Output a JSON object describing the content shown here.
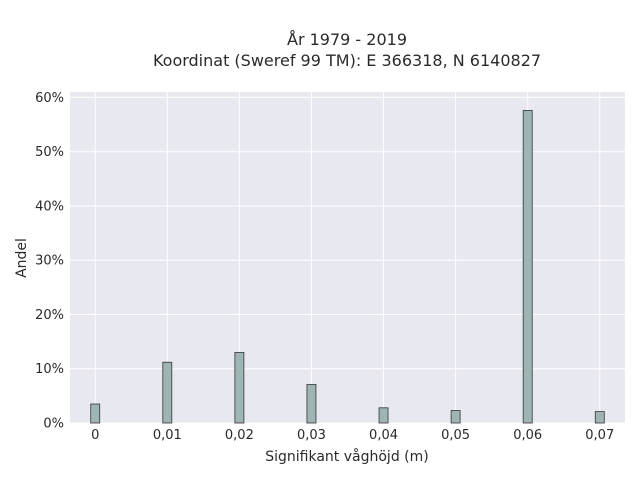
{
  "chart_data": {
    "type": "bar",
    "title_lines": [
      "År 1979 - 2019",
      "Koordinat (Sweref 99 TM): E 366318, N 6140827"
    ],
    "xlabel": "Signifikant våghöjd (m)",
    "ylabel": "Andel",
    "x": [
      0,
      0.01,
      0.02,
      0.03,
      0.04,
      0.05,
      0.06,
      0.07
    ],
    "values": [
      3.5,
      11.2,
      13.0,
      7.1,
      2.8,
      2.3,
      57.6,
      2.1
    ],
    "x_ticks": [
      0,
      0.01,
      0.02,
      0.03,
      0.04,
      0.05,
      0.06,
      0.07
    ],
    "x_tick_labels": [
      "0",
      "0,01",
      "0,02",
      "0,03",
      "0,04",
      "0,05",
      "0,06",
      "0,07"
    ],
    "y_ticks": [
      0,
      10,
      20,
      30,
      40,
      50,
      60
    ],
    "y_tick_labels": [
      "0%",
      "10%",
      "20%",
      "30%",
      "40%",
      "50%",
      "60%"
    ],
    "xlim": [
      -0.0035,
      0.0735
    ],
    "ylim": [
      0,
      61
    ],
    "grid": true,
    "colors": {
      "plot_background": "#e8e8f0",
      "gridline": "#ffffff",
      "bar_fill": "#9fb5b3",
      "bar_stroke": "#333333"
    }
  }
}
